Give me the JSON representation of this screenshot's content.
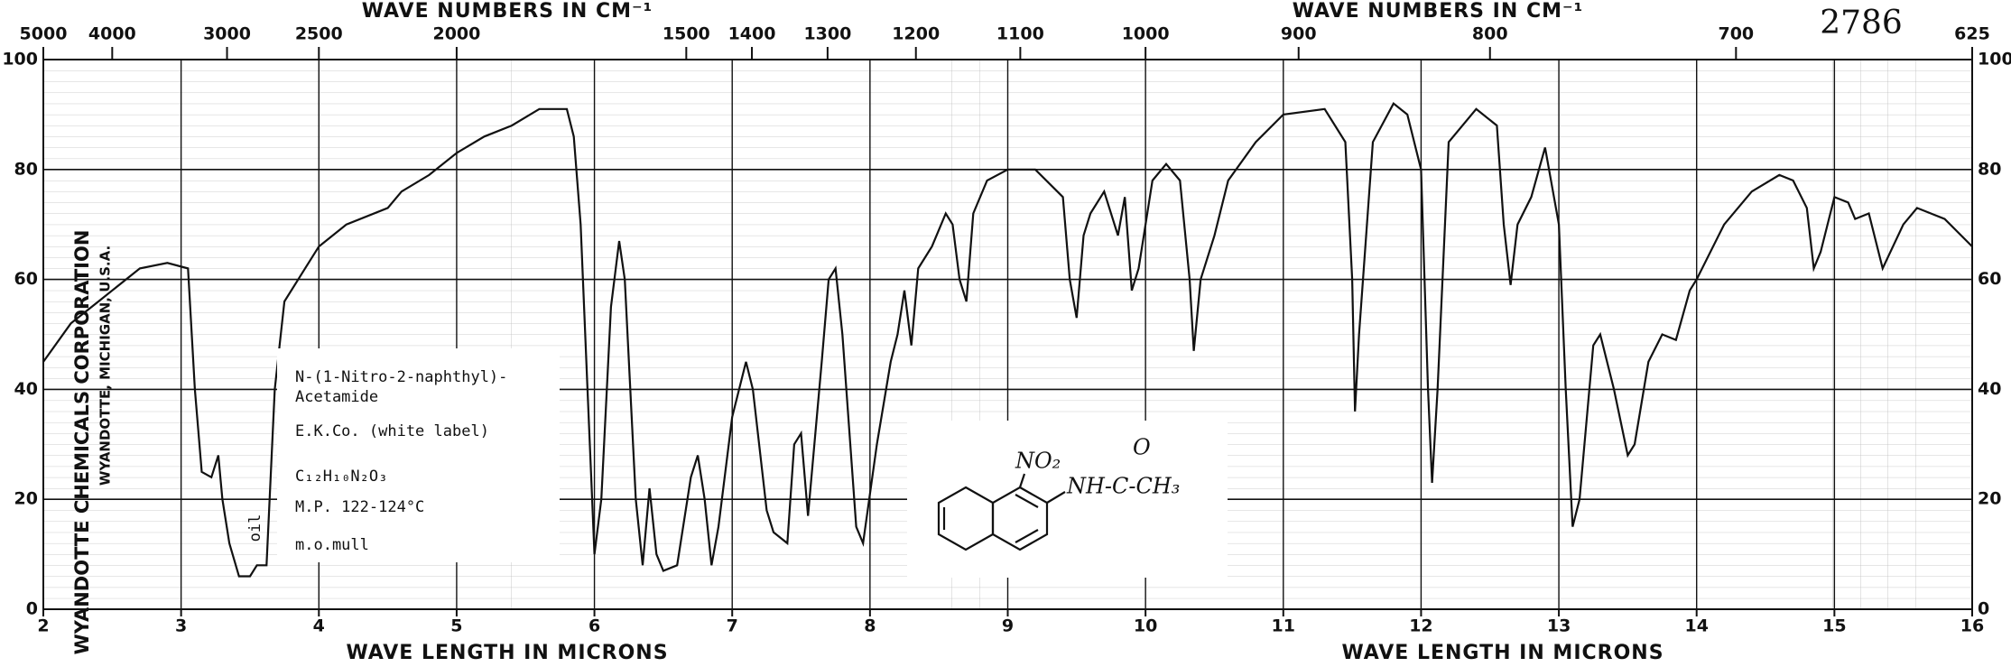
{
  "chart_data": {
    "type": "line",
    "spectrum_number": "2786",
    "top_axis_labels": [
      "WAVE NUMBERS IN CM⁻¹",
      "WAVE NUMBERS IN CM⁻¹"
    ],
    "bottom_axis_labels": [
      "WAVE LENGTH IN MICRONS",
      "WAVE LENGTH IN MICRONS"
    ],
    "side_text": [
      "WYANDOTTE CHEMICALS CORPORATION",
      "WYANDOTTE, MICHIGAN, U.S.A."
    ],
    "annotation": "oil",
    "sample_info": [
      "N-(1-Nitro-2-naphthyl)-",
      "Acetamide",
      "E.K.Co. (white label)",
      "C₁₂H₁₀N₂O₃",
      "M.P. 122-124°C",
      "m.o.mull"
    ],
    "structure_labels": [
      "NO₂",
      "NH-C-CH₃",
      "O"
    ],
    "color": "#111111",
    "grid": true,
    "xlim": [
      2,
      16
    ],
    "ylim": [
      0,
      100
    ],
    "xticks": [
      2,
      3,
      4,
      5,
      6,
      7,
      8,
      9,
      10,
      11,
      12,
      13,
      14,
      15,
      16
    ],
    "yticks": [
      0,
      20,
      40,
      60,
      80,
      100
    ],
    "x2ticks": [
      5000,
      4000,
      3000,
      2500,
      2000,
      1500,
      1400,
      1300,
      1200,
      1100,
      1000,
      900,
      800,
      700,
      625
    ],
    "x": [
      2.0,
      2.2,
      2.4,
      2.6,
      2.7,
      2.9,
      3.05,
      3.1,
      3.15,
      3.22,
      3.27,
      3.3,
      3.35,
      3.42,
      3.5,
      3.55,
      3.62,
      3.68,
      3.75,
      3.9,
      4.0,
      4.2,
      4.5,
      4.6,
      4.8,
      5.0,
      5.2,
      5.4,
      5.6,
      5.8,
      5.85,
      5.9,
      5.95,
      6.0,
      6.05,
      6.12,
      6.18,
      6.22,
      6.3,
      6.35,
      6.4,
      6.45,
      6.5,
      6.6,
      6.7,
      6.75,
      6.8,
      6.85,
      6.9,
      7.0,
      7.1,
      7.15,
      7.25,
      7.3,
      7.4,
      7.45,
      7.5,
      7.55,
      7.65,
      7.7,
      7.75,
      7.8,
      7.9,
      7.95,
      8.05,
      8.15,
      8.2,
      8.25,
      8.3,
      8.35,
      8.45,
      8.55,
      8.6,
      8.65,
      8.7,
      8.75,
      8.85,
      9.0,
      9.2,
      9.4,
      9.45,
      9.5,
      9.55,
      9.6,
      9.7,
      9.8,
      9.85,
      9.9,
      9.95,
      10.05,
      10.15,
      10.25,
      10.32,
      10.35,
      10.4,
      10.5,
      10.6,
      10.8,
      11.0,
      11.3,
      11.45,
      11.5,
      11.52,
      11.55,
      11.65,
      11.8,
      11.9,
      12.0,
      12.05,
      12.08,
      12.12,
      12.2,
      12.4,
      12.55,
      12.6,
      12.65,
      12.7,
      12.8,
      12.9,
      13.0,
      13.05,
      13.1,
      13.15,
      13.25,
      13.3,
      13.4,
      13.5,
      13.55,
      13.65,
      13.75,
      13.85,
      13.95,
      14.0,
      14.2,
      14.4,
      14.6,
      14.7,
      14.8,
      14.85,
      14.9,
      15.0,
      15.1,
      15.15,
      15.25,
      15.35,
      15.5,
      15.6,
      15.8,
      16.0
    ],
    "values": [
      45,
      52,
      56,
      60,
      62,
      63,
      62,
      40,
      25,
      24,
      28,
      20,
      12,
      6,
      6,
      8,
      8,
      40,
      56,
      62,
      66,
      70,
      73,
      76,
      79,
      83,
      86,
      88,
      91,
      91,
      86,
      70,
      40,
      10,
      20,
      55,
      67,
      60,
      20,
      8,
      22,
      10,
      7,
      8,
      24,
      28,
      20,
      8,
      15,
      35,
      45,
      40,
      18,
      14,
      12,
      30,
      32,
      17,
      45,
      60,
      62,
      50,
      15,
      12,
      30,
      45,
      50,
      58,
      48,
      62,
      66,
      72,
      70,
      60,
      56,
      72,
      78,
      80,
      80,
      75,
      60,
      53,
      68,
      72,
      76,
      68,
      75,
      58,
      62,
      78,
      81,
      78,
      60,
      47,
      60,
      68,
      78,
      85,
      90,
      91,
      85,
      60,
      36,
      50,
      85,
      92,
      90,
      80,
      40,
      23,
      40,
      85,
      91,
      88,
      70,
      59,
      70,
      75,
      84,
      70,
      40,
      15,
      20,
      48,
      50,
      40,
      28,
      30,
      45,
      50,
      49,
      58,
      60,
      70,
      76,
      79,
      78,
      73,
      62,
      65,
      75,
      74,
      71,
      72,
      62,
      70,
      73,
      71,
      66
    ]
  }
}
